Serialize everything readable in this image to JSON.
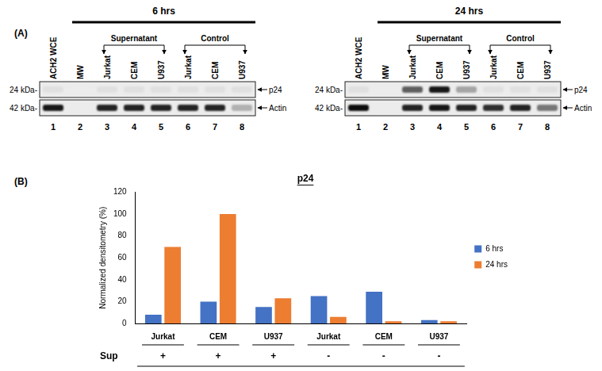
{
  "panel_a": {
    "label": "(A)",
    "blots": [
      {
        "title": "6 hrs",
        "groups": [
          {
            "label": "Supernatant",
            "lanes": [
              3,
              5
            ]
          },
          {
            "label": "Control",
            "lanes": [
              6,
              8
            ]
          }
        ],
        "markers": [
          {
            "label": "24 kDa-",
            "band": "p24"
          },
          {
            "label": "42 kDa-",
            "band": "Actin"
          }
        ],
        "lanes": [
          {
            "number": 1,
            "label": "ACH2 WCE",
            "band_intensity": {
              "p24": 0.05,
              "Actin": 0.9
            }
          },
          {
            "number": 2,
            "label": "MW",
            "band_intensity": {
              "p24": 0,
              "Actin": 0
            }
          },
          {
            "number": 3,
            "label": "Jurkat",
            "band_intensity": {
              "p24": 0.05,
              "Actin": 0.85
            }
          },
          {
            "number": 4,
            "label": "CEM",
            "band_intensity": {
              "p24": 0.05,
              "Actin": 0.85
            }
          },
          {
            "number": 5,
            "label": "U937",
            "band_intensity": {
              "p24": 0.05,
              "Actin": 0.85
            }
          },
          {
            "number": 6,
            "label": "Jurkat",
            "band_intensity": {
              "p24": 0.05,
              "Actin": 0.85
            }
          },
          {
            "number": 7,
            "label": "CEM",
            "band_intensity": {
              "p24": 0.05,
              "Actin": 0.85
            }
          },
          {
            "number": 8,
            "label": "U937",
            "band_intensity": {
              "p24": 0.05,
              "Actin": 0.25
            }
          }
        ]
      },
      {
        "title": "24 hrs",
        "groups": [
          {
            "label": "Supernatant",
            "lanes": [
              3,
              5
            ]
          },
          {
            "label": "Control",
            "lanes": [
              6,
              8
            ]
          }
        ],
        "markers": [
          {
            "label": "24 kDa-",
            "band": "p24"
          },
          {
            "label": "42 kDa-",
            "band": "Actin"
          }
        ],
        "lanes": [
          {
            "number": 1,
            "label": "ACH2 WCE",
            "band_intensity": {
              "p24": 0.05,
              "Actin": 0.95
            }
          },
          {
            "number": 2,
            "label": "MW",
            "band_intensity": {
              "p24": 0,
              "Actin": 0
            }
          },
          {
            "number": 3,
            "label": "Jurkat",
            "band_intensity": {
              "p24": 0.6,
              "Actin": 0.85
            }
          },
          {
            "number": 4,
            "label": "CEM",
            "band_intensity": {
              "p24": 0.9,
              "Actin": 0.9
            }
          },
          {
            "number": 5,
            "label": "U937",
            "band_intensity": {
              "p24": 0.3,
              "Actin": 0.85
            }
          },
          {
            "number": 6,
            "label": "Jurkat",
            "band_intensity": {
              "p24": 0.05,
              "Actin": 0.8
            }
          },
          {
            "number": 7,
            "label": "CEM",
            "band_intensity": {
              "p24": 0.05,
              "Actin": 0.85
            }
          },
          {
            "number": 8,
            "label": "U937",
            "band_intensity": {
              "p24": 0.05,
              "Actin": 0.5
            }
          }
        ]
      }
    ]
  },
  "panel_b": {
    "label": "(B)"
  },
  "chart_data": {
    "type": "bar",
    "title": "p24",
    "y_label": "Normalized densitometry (%)",
    "categories": [
      "Jurkat",
      "CEM",
      "U937",
      "Jurkat",
      "CEM",
      "U937"
    ],
    "series": [
      {
        "name": "6 hrs",
        "color": "#4472c4",
        "values": [
          8,
          20,
          15,
          25,
          29,
          3
        ]
      },
      {
        "name": "24 hrs",
        "color": "#ed7d31",
        "values": [
          70,
          100,
          23,
          6,
          2,
          2
        ]
      }
    ],
    "sup": {
      "label": "Sup",
      "values": [
        "+",
        "+",
        "+",
        "-",
        "-",
        "-"
      ]
    },
    "ylim": [
      0,
      120
    ],
    "yticks": [
      0,
      20,
      40,
      60,
      80,
      100,
      120
    ],
    "grid": false,
    "legend": "right"
  }
}
